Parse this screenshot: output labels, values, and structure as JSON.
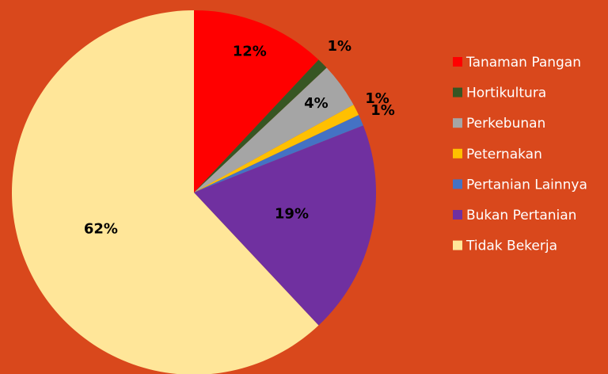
{
  "chart_data": {
    "type": "pie",
    "categories": [
      "Tanaman Pangan",
      "Hortikultura",
      "Perkebunan",
      "Peternakan",
      "Pertanian Lainnya",
      "Bukan Pertanian",
      "Tidak Bekerja"
    ],
    "values": [
      12,
      1,
      4,
      1,
      1,
      19,
      62
    ],
    "value_labels": [
      "12%",
      "1%",
      "4%",
      "1%",
      "1%",
      "19%",
      "62%"
    ],
    "colors": [
      "#ff0000",
      "#375623",
      "#a5a5a5",
      "#ffc000",
      "#4472c4",
      "#7030a0",
      "#ffe699"
    ],
    "legend": "right"
  }
}
